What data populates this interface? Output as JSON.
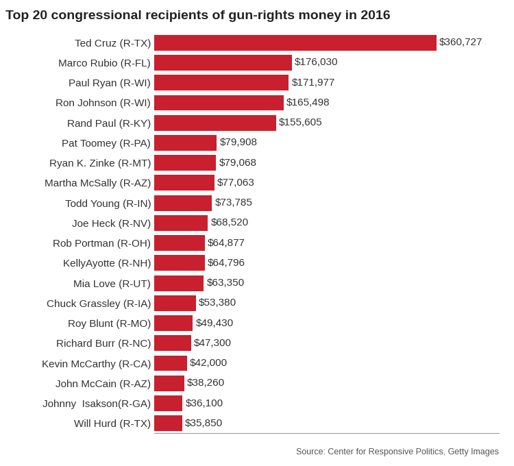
{
  "chart_data": {
    "type": "bar",
    "orientation": "horizontal",
    "title": "Top 20 congressional recipients of gun-rights money in 2016",
    "categories": [
      "Ted Cruz (R-TX)",
      "Marco Rubio (R-FL)",
      "Paul Ryan (R-WI)",
      "Ron Johnson (R-WI)",
      "Rand Paul (R-KY)",
      "Pat Toomey (R-PA)",
      "Ryan K. Zinke (R-MT)",
      "Martha McSally (R-AZ)",
      "Todd Young (R-IN)",
      "Joe Heck (R-NV)",
      "Rob Portman (R-OH)",
      "KellyAyotte (R-NH)",
      "Mia Love (R-UT)",
      "Chuck Grassley (R-IA)",
      "Roy Blunt (R-MO)",
      "Richard Burr (R-NC)",
      "Kevin McCarthy (R-CA)",
      "John McCain (R-AZ)",
      "Johnny  Isakson(R-GA)",
      "Will Hurd (R-TX)"
    ],
    "values": [
      360727,
      176030,
      171977,
      165498,
      155605,
      79908,
      79068,
      77063,
      73785,
      68520,
      64877,
      64796,
      63350,
      53380,
      49430,
      47300,
      42000,
      38260,
      36100,
      35850
    ],
    "value_labels": [
      "$360,727",
      "$176,030",
      "$171,977",
      "$165,498",
      "$155,605",
      "$79,908",
      "$79,068",
      "$77,063",
      "$73,785",
      "$68,520",
      "$64,877",
      "$64,796",
      "$63,350",
      "$53,380",
      "$49,430",
      "$47,300",
      "$42,000",
      "$38,260",
      "$36,100",
      "$35,850"
    ],
    "data_labels": true,
    "color": "#c8202f",
    "xlim": [
      0,
      440000
    ],
    "xticks": [],
    "tick_labels": "y",
    "source": "Source: Center for Responsive Politics, Getty Images"
  }
}
